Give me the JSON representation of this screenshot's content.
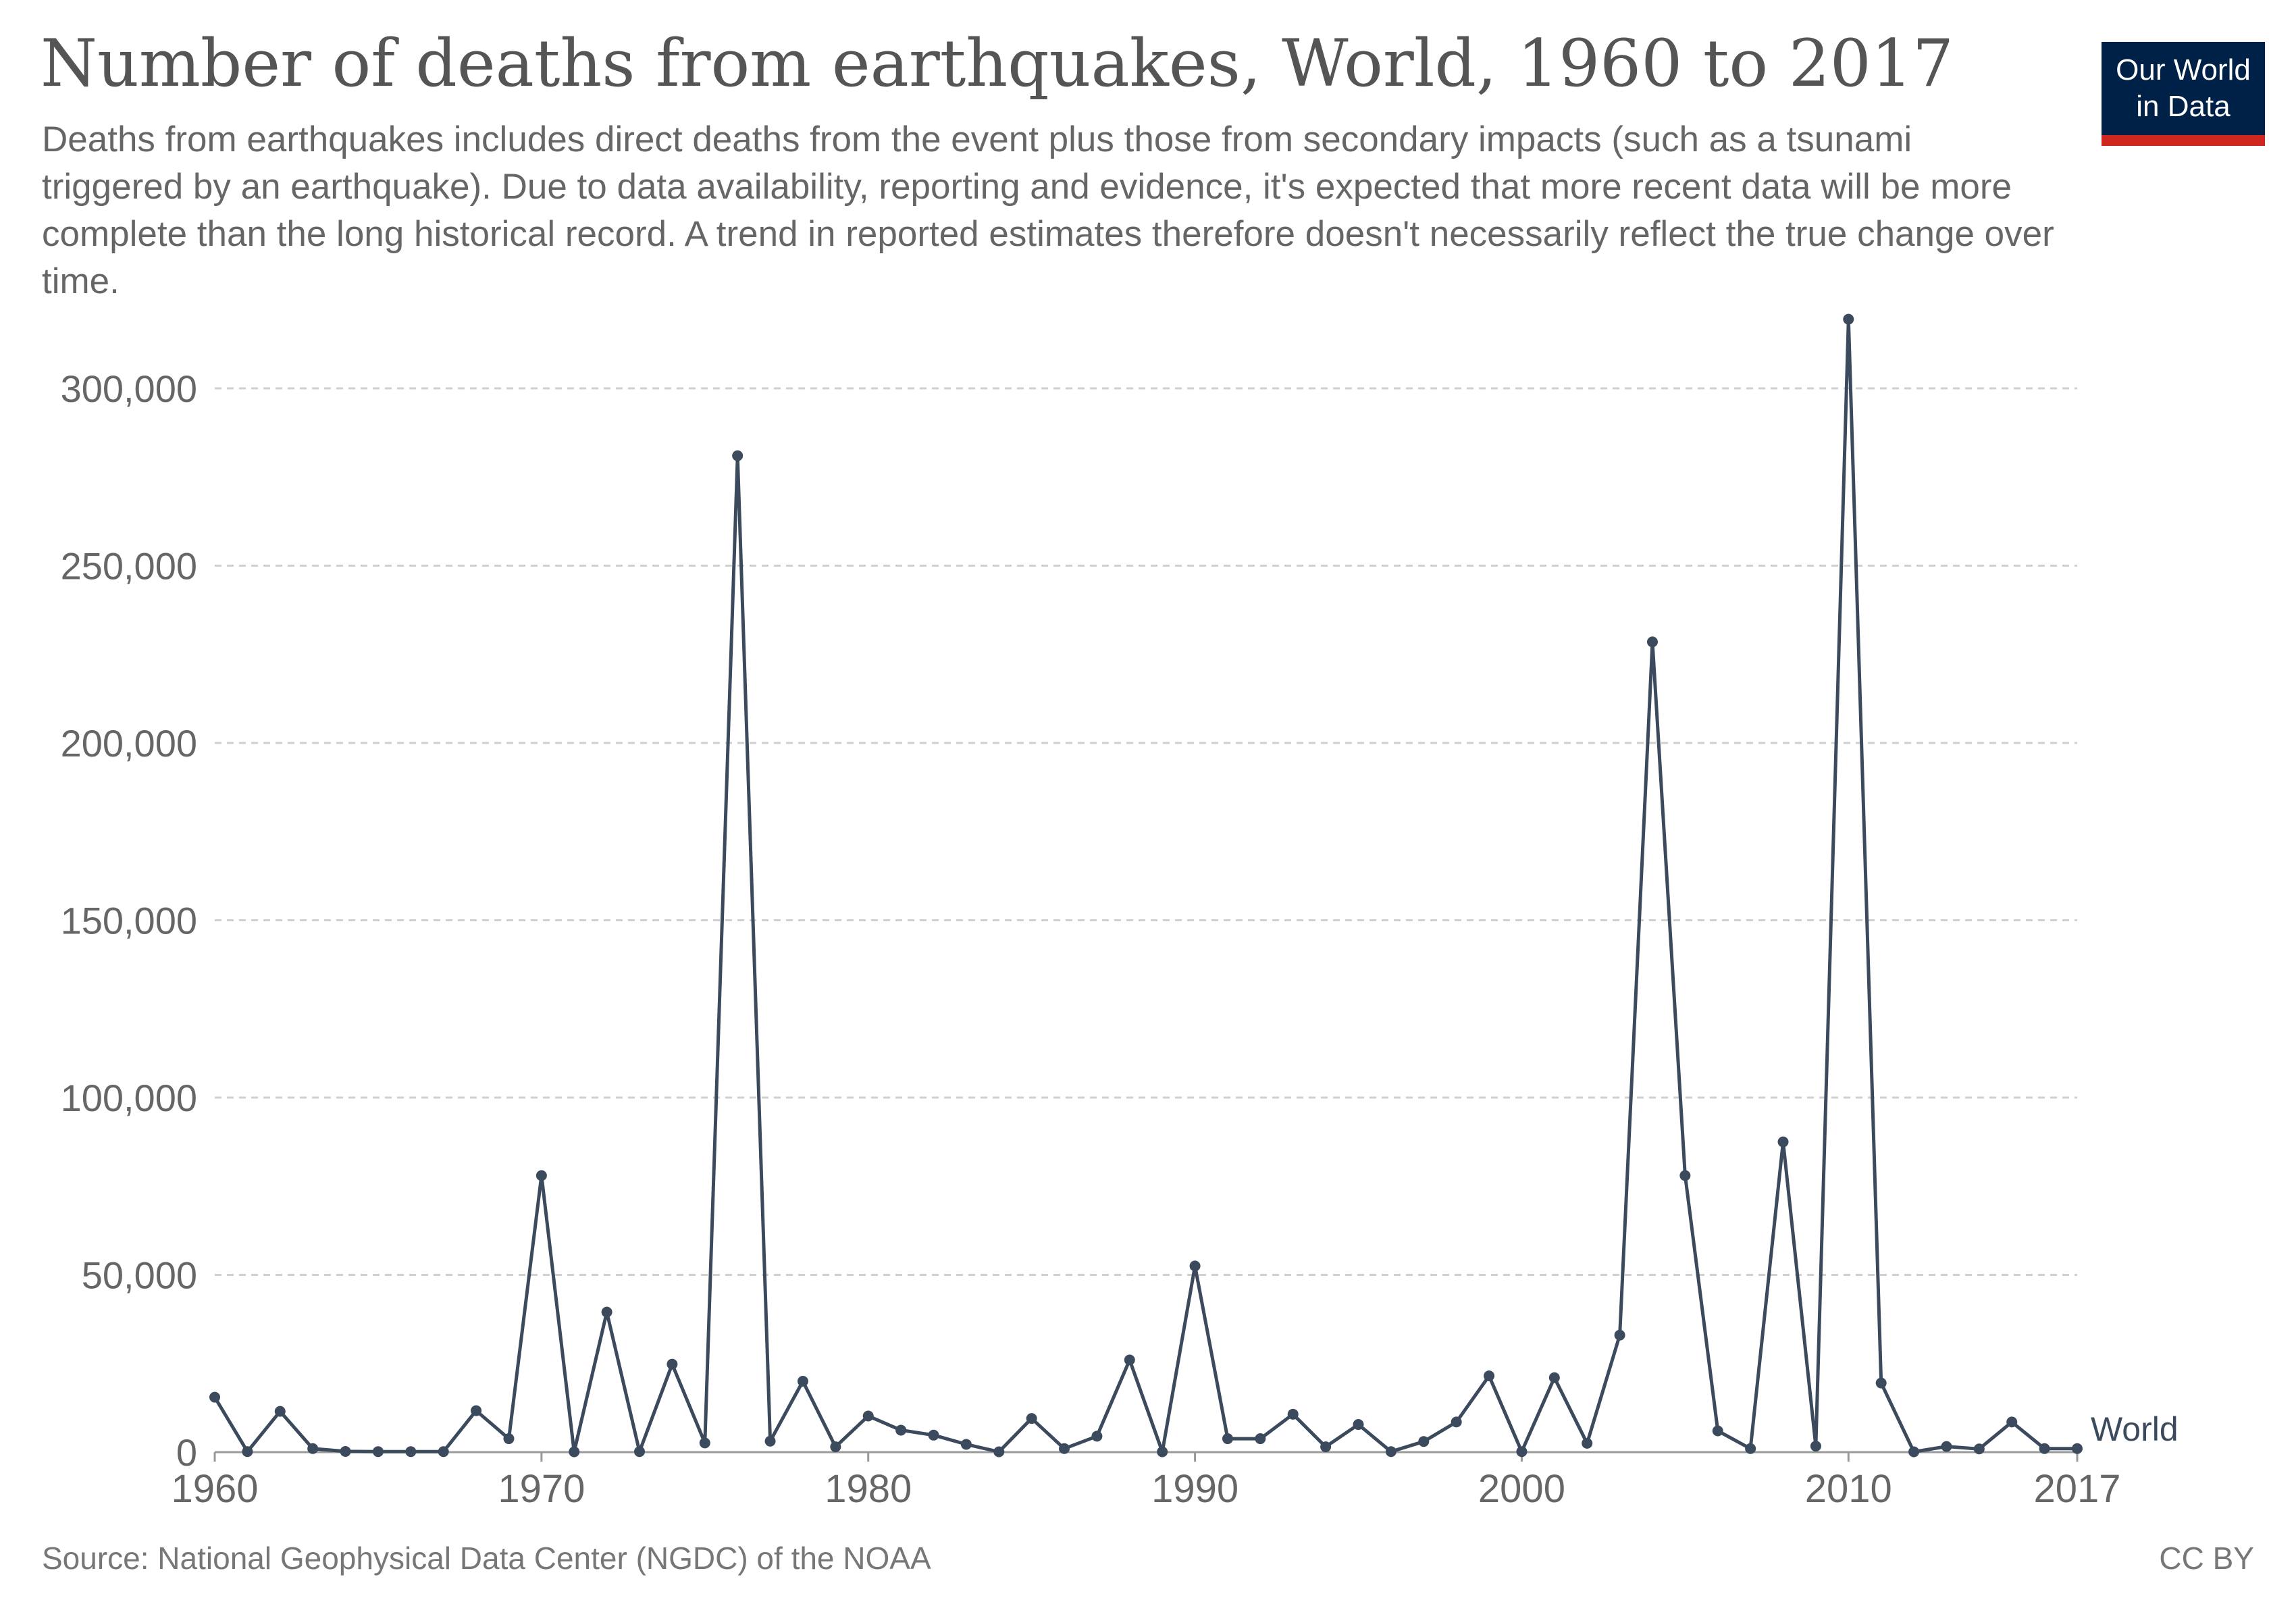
{
  "header": {
    "title": "Number of deaths from earthquakes, World, 1960 to 2017",
    "subtitle": "Deaths from earthquakes includes direct deaths from the event plus those from secondary impacts (such as a tsunami triggered by an earthquake). Due to data availability, reporting and evidence, it's expected that more recent data will be more complete than the long historical record. A trend in reported estimates therefore doesn't necessarily reflect the true change over time."
  },
  "logo": {
    "line1": "Our World",
    "line2": "in Data",
    "bg_color": "#002147",
    "accent_color": "#ce261e"
  },
  "footer": {
    "source": "Source: National Geophysical Data Center (NGDC) of the NOAA",
    "license": "CC BY"
  },
  "chart_data": {
    "type": "line",
    "title": "Number of deaths from earthquakes, World, 1960 to 2017",
    "xlabel": "",
    "ylabel": "",
    "xlim": [
      1960,
      2017
    ],
    "ylim": [
      0,
      320000
    ],
    "y_ticks": [
      0,
      50000,
      100000,
      150000,
      200000,
      250000,
      300000
    ],
    "y_tick_labels": [
      "0",
      "50,000",
      "100,000",
      "150,000",
      "200,000",
      "250,000",
      "300,000"
    ],
    "x_ticks": [
      1960,
      1970,
      1980,
      1990,
      2000,
      2010,
      2017
    ],
    "x_tick_labels": [
      "1960",
      "1970",
      "1980",
      "1990",
      "2000",
      "2010",
      "2017"
    ],
    "grid": "horizontal dashed",
    "line_color": "#3c4a5e",
    "grid_color": "#d0d0d0",
    "series": [
      {
        "name": "World",
        "x": [
          1960,
          1961,
          1962,
          1963,
          1964,
          1965,
          1966,
          1967,
          1968,
          1969,
          1970,
          1971,
          1972,
          1973,
          1974,
          1975,
          1976,
          1977,
          1978,
          1979,
          1980,
          1981,
          1982,
          1983,
          1984,
          1985,
          1986,
          1987,
          1988,
          1989,
          1990,
          1991,
          1992,
          1993,
          1994,
          1995,
          1996,
          1997,
          1998,
          1999,
          2000,
          2001,
          2002,
          2003,
          2004,
          2005,
          2006,
          2007,
          2008,
          2009,
          2010,
          2011,
          2012,
          2013,
          2014,
          2015,
          2016,
          2017
        ],
        "y": [
          15500,
          150,
          11500,
          1000,
          200,
          150,
          150,
          150,
          11700,
          3800,
          78000,
          100,
          39500,
          150,
          24800,
          2600,
          281000,
          3100,
          20000,
          1500,
          10200,
          6200,
          4800,
          2200,
          100,
          9500,
          1000,
          4500,
          26000,
          100,
          52500,
          3800,
          3800,
          10700,
          1500,
          7800,
          150,
          3000,
          8500,
          21500,
          150,
          21000,
          2500,
          33000,
          228500,
          78000,
          6000,
          1000,
          87500,
          1700,
          319500,
          19500,
          100,
          1600,
          900,
          8500,
          1000,
          1000
        ]
      }
    ]
  }
}
